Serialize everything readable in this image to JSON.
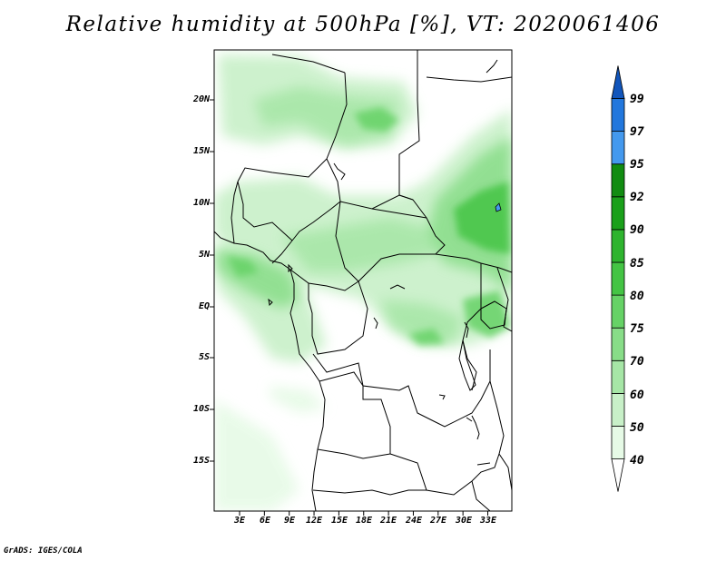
{
  "title": "Relative humidity at 500hPa [%], VT: 2020061406",
  "credit": "GrADS: IGES/COLA",
  "map": {
    "lon_range": [
      0,
      36
    ],
    "lat_range": [
      -20,
      25
    ],
    "lat_labels": [
      "20N",
      "15N",
      "10N",
      "5N",
      "EQ",
      "5S",
      "10S",
      "15S"
    ],
    "lon_labels": [
      "3E",
      "6E",
      "9E",
      "12E",
      "15E",
      "18E",
      "21E",
      "24E",
      "27E",
      "30E",
      "33E"
    ]
  },
  "colorbar": {
    "levels": [
      "40",
      "50",
      "60",
      "70",
      "75",
      "80",
      "85",
      "90",
      "92",
      "95",
      "97",
      "99"
    ],
    "colors": [
      "#ffffff",
      "#e6fae6",
      "#c8f0c8",
      "#a6e6a6",
      "#88dd88",
      "#66d266",
      "#44c444",
      "#2eb42e",
      "#1aa01a",
      "#118c11",
      "#4499ee",
      "#2277dd",
      "#1155bb"
    ]
  }
}
